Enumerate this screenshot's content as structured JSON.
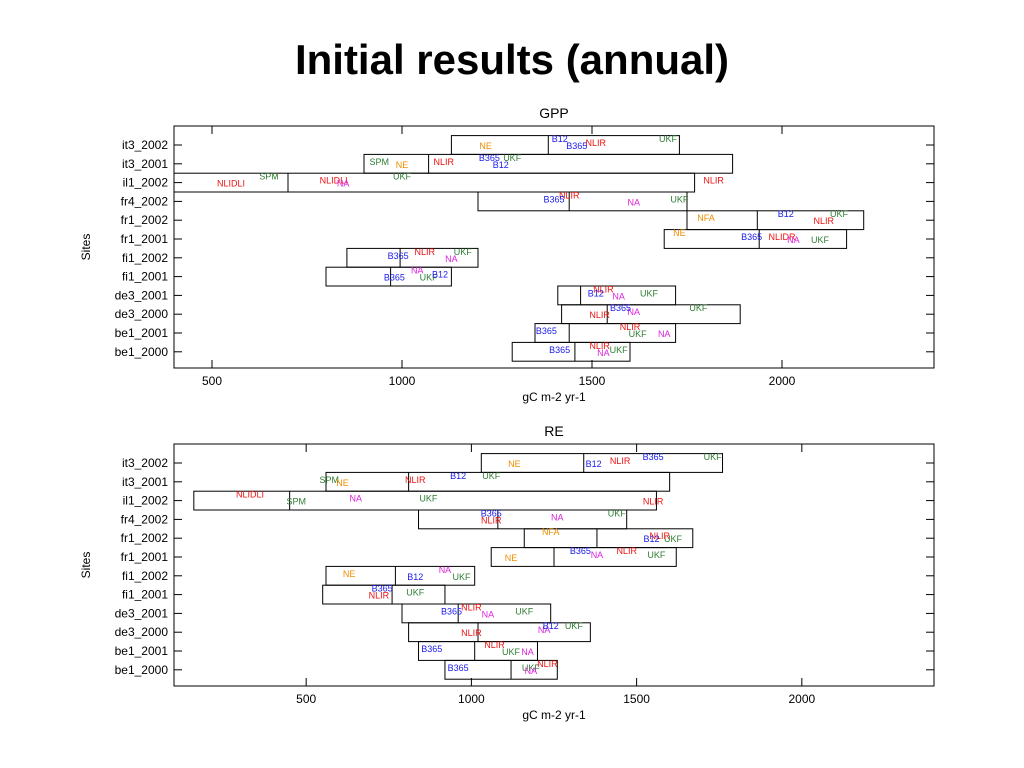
{
  "slide": {
    "title": "Initial results (annual)"
  },
  "chart_data": [
    {
      "type": "box",
      "title": "GPP",
      "xlabel": "gC m-2 yr-1",
      "ylabel": "Sites",
      "xlim": [
        400,
        2400
      ],
      "xticks": [
        500,
        1000,
        1500,
        2000
      ],
      "grid": false,
      "categories": [
        "it3_2002",
        "it3_2001",
        "il1_2002",
        "fr4_2002",
        "fr1_2002",
        "fr1_2001",
        "fi1_2002",
        "fi1_2001",
        "de3_2001",
        "de3_2000",
        "be1_2001",
        "be1_2000"
      ],
      "boxes": [
        {
          "site": "it3_2002",
          "low": 1130,
          "high": 1730,
          "median": 1385
        },
        {
          "site": "it3_2001",
          "low": 900,
          "high": 1870,
          "median": 1070
        },
        {
          "site": "il1_2002",
          "low": 400,
          "high": 1770,
          "median": 700
        },
        {
          "site": "fr4_2002",
          "low": 1200,
          "high": 1750,
          "median": 1440
        },
        {
          "site": "fr1_2002",
          "low": 1750,
          "high": 2215,
          "median": 1935
        },
        {
          "site": "fr1_2001",
          "low": 1690,
          "high": 2170,
          "median": 1940
        },
        {
          "site": "fi1_2002",
          "low": 855,
          "high": 1200,
          "median": 995
        },
        {
          "site": "fi1_2001",
          "low": 800,
          "high": 1130,
          "median": 970
        },
        {
          "site": "de3_2001",
          "low": 1410,
          "high": 1720,
          "median": 1470
        },
        {
          "site": "de3_2000",
          "low": 1420,
          "high": 1890,
          "median": 1540
        },
        {
          "site": "be1_2001",
          "low": 1350,
          "high": 1720,
          "median": 1440
        },
        {
          "site": "be1_2000",
          "low": 1290,
          "high": 1600,
          "median": 1455
        }
      ],
      "model_labels": [
        {
          "site": "it3_2002",
          "label": "UKF",
          "x": 1700,
          "color": "#2e7d32"
        },
        {
          "site": "it3_2002",
          "label": "NE",
          "x": 1220,
          "color": "#ef8c00"
        },
        {
          "site": "it3_2002",
          "label": "NLIR",
          "x": 1510,
          "color": "#ee1111"
        },
        {
          "site": "it3_2002",
          "label": "B12",
          "x": 1415,
          "color": "#1a1aee"
        },
        {
          "site": "it3_2002",
          "label": "B365",
          "x": 1460,
          "color": "#1a1aee"
        },
        {
          "site": "it3_2001",
          "label": "SPM",
          "x": 940,
          "color": "#2e7d32"
        },
        {
          "site": "it3_2001",
          "label": "UKF",
          "x": 1290,
          "color": "#2e7d32"
        },
        {
          "site": "it3_2001",
          "label": "NE",
          "x": 1000,
          "color": "#ef8c00"
        },
        {
          "site": "it3_2001",
          "label": "NLIR",
          "x": 1110,
          "color": "#ee1111"
        },
        {
          "site": "it3_2001",
          "label": "B365",
          "x": 1230,
          "color": "#1a1aee"
        },
        {
          "site": "it3_2001",
          "label": "B12",
          "x": 1260,
          "color": "#1a1aee"
        },
        {
          "site": "il1_2002",
          "label": "NLIR",
          "x": 1820,
          "color": "#ee1111"
        },
        {
          "site": "il1_2002",
          "label": "UKF",
          "x": 1000,
          "color": "#2e7d32"
        },
        {
          "site": "il1_2002",
          "label": "NLIDLI",
          "x": 550,
          "color": "#ee1111"
        },
        {
          "site": "il1_2002",
          "label": "NLIDLI",
          "x": 820,
          "color": "#ee1111"
        },
        {
          "site": "il1_2002",
          "label": "SPM",
          "x": 650,
          "color": "#2e7d32"
        },
        {
          "site": "il1_2002",
          "label": "NA",
          "x": 845,
          "color": "#dd22dd"
        },
        {
          "site": "fr4_2002",
          "label": "UKF",
          "x": 1730,
          "color": "#2e7d32"
        },
        {
          "site": "fr4_2002",
          "label": "NLIR",
          "x": 1440,
          "color": "#ee1111"
        },
        {
          "site": "fr4_2002",
          "label": "NA",
          "x": 1610,
          "color": "#dd22dd"
        },
        {
          "site": "fr4_2002",
          "label": "B365",
          "x": 1400,
          "color": "#1a1aee"
        },
        {
          "site": "fr1_2002",
          "label": "UKF",
          "x": 2150,
          "color": "#2e7d32"
        },
        {
          "site": "fr1_2002",
          "label": "NLIR",
          "x": 2110,
          "color": "#ee1111"
        },
        {
          "site": "fr1_2002",
          "label": "NFA",
          "x": 1800,
          "color": "#ef8c00"
        },
        {
          "site": "fr1_2002",
          "label": "B12",
          "x": 2010,
          "color": "#1a1aee"
        },
        {
          "site": "fr1_2001",
          "label": "UKF",
          "x": 2100,
          "color": "#2e7d32"
        },
        {
          "site": "fr1_2001",
          "label": "NLIDR",
          "x": 2000,
          "color": "#ee1111"
        },
        {
          "site": "fr1_2001",
          "label": "NE",
          "x": 1730,
          "color": "#ef8c00"
        },
        {
          "site": "fr1_2001",
          "label": "NA",
          "x": 2030,
          "color": "#dd22dd"
        },
        {
          "site": "fr1_2001",
          "label": "B365",
          "x": 1920,
          "color": "#1a1aee"
        },
        {
          "site": "fi1_2002",
          "label": "UKF",
          "x": 1160,
          "color": "#2e7d32"
        },
        {
          "site": "fi1_2002",
          "label": "NA",
          "x": 1130,
          "color": "#dd22dd"
        },
        {
          "site": "fi1_2002",
          "label": "B365",
          "x": 990,
          "color": "#1a1aee"
        },
        {
          "site": "fi1_2002",
          "label": "NLIR",
          "x": 1060,
          "color": "#ee1111"
        },
        {
          "site": "fi1_2001",
          "label": "UKF",
          "x": 1070,
          "color": "#2e7d32"
        },
        {
          "site": "fi1_2001",
          "label": "B12",
          "x": 1100,
          "color": "#1a1aee"
        },
        {
          "site": "fi1_2001",
          "label": "NA",
          "x": 1040,
          "color": "#dd22dd"
        },
        {
          "site": "fi1_2001",
          "label": "B365",
          "x": 980,
          "color": "#1a1aee"
        },
        {
          "site": "de3_2001",
          "label": "UKF",
          "x": 1650,
          "color": "#2e7d32"
        },
        {
          "site": "de3_2001",
          "label": "NLIR",
          "x": 1530,
          "color": "#ee1111"
        },
        {
          "site": "de3_2001",
          "label": "NA",
          "x": 1570,
          "color": "#dd22dd"
        },
        {
          "site": "de3_2001",
          "label": "B12",
          "x": 1510,
          "color": "#1a1aee"
        },
        {
          "site": "de3_2000",
          "label": "UKF",
          "x": 1780,
          "color": "#2e7d32"
        },
        {
          "site": "de3_2000",
          "label": "NLIR",
          "x": 1520,
          "color": "#ee1111"
        },
        {
          "site": "de3_2000",
          "label": "NA",
          "x": 1610,
          "color": "#dd22dd"
        },
        {
          "site": "de3_2000",
          "label": "B365",
          "x": 1575,
          "color": "#1a1aee"
        },
        {
          "site": "be1_2001",
          "label": "NA",
          "x": 1690,
          "color": "#dd22dd"
        },
        {
          "site": "be1_2001",
          "label": "B365",
          "x": 1380,
          "color": "#1a1aee"
        },
        {
          "site": "be1_2001",
          "label": "NLIR",
          "x": 1600,
          "color": "#ee1111"
        },
        {
          "site": "be1_2001",
          "label": "UKF",
          "x": 1620,
          "color": "#2e7d32"
        },
        {
          "site": "be1_2000",
          "label": "UKF",
          "x": 1570,
          "color": "#2e7d32"
        },
        {
          "site": "be1_2000",
          "label": "NLIR",
          "x": 1520,
          "color": "#ee1111"
        },
        {
          "site": "be1_2000",
          "label": "NA",
          "x": 1530,
          "color": "#dd22dd"
        },
        {
          "site": "be1_2000",
          "label": "B365",
          "x": 1415,
          "color": "#1a1aee"
        }
      ]
    },
    {
      "type": "box",
      "title": "RE",
      "xlabel": "gC m-2 yr-1",
      "ylabel": "Sites",
      "xlim": [
        100,
        2400
      ],
      "xticks": [
        500,
        1000,
        1500,
        2000
      ],
      "grid": false,
      "categories": [
        "it3_2002",
        "it3_2001",
        "il1_2002",
        "fr4_2002",
        "fr1_2002",
        "fr1_2001",
        "fi1_2002",
        "fi1_2001",
        "de3_2001",
        "de3_2000",
        "be1_2001",
        "be1_2000"
      ],
      "boxes": [
        {
          "site": "it3_2002",
          "low": 1030,
          "high": 1760,
          "median": 1340
        },
        {
          "site": "it3_2001",
          "low": 560,
          "high": 1600,
          "median": 810
        },
        {
          "site": "il1_2002",
          "low": 160,
          "high": 1560,
          "median": 450
        },
        {
          "site": "fr4_2002",
          "low": 840,
          "high": 1470,
          "median": 1080
        },
        {
          "site": "fr1_2002",
          "low": 1160,
          "high": 1670,
          "median": 1380
        },
        {
          "site": "fr1_2001",
          "low": 1060,
          "high": 1620,
          "median": 1250
        },
        {
          "site": "fi1_2002",
          "low": 560,
          "high": 1010,
          "median": 770
        },
        {
          "site": "fi1_2001",
          "low": 550,
          "high": 920,
          "median": 760
        },
        {
          "site": "de3_2001",
          "low": 790,
          "high": 1240,
          "median": 960
        },
        {
          "site": "de3_2000",
          "low": 810,
          "high": 1360,
          "median": 1020
        },
        {
          "site": "be1_2001",
          "low": 840,
          "high": 1200,
          "median": 1010
        },
        {
          "site": "be1_2000",
          "low": 920,
          "high": 1260,
          "median": 1120
        }
      ],
      "model_labels": [
        {
          "site": "it3_2002",
          "label": "UKF",
          "x": 1730,
          "color": "#2e7d32"
        },
        {
          "site": "it3_2002",
          "label": "NE",
          "x": 1130,
          "color": "#ef8c00"
        },
        {
          "site": "it3_2002",
          "label": "NLIR",
          "x": 1450,
          "color": "#ee1111"
        },
        {
          "site": "it3_2002",
          "label": "B365",
          "x": 1550,
          "color": "#1a1aee"
        },
        {
          "site": "it3_2002",
          "label": "B12",
          "x": 1370,
          "color": "#1a1aee"
        },
        {
          "site": "it3_2001",
          "label": "SPM",
          "x": 570,
          "color": "#2e7d32"
        },
        {
          "site": "it3_2001",
          "label": "UKF",
          "x": 1060,
          "color": "#2e7d32"
        },
        {
          "site": "it3_2001",
          "label": "NE",
          "x": 610,
          "color": "#ef8c00"
        },
        {
          "site": "it3_2001",
          "label": "NLIR",
          "x": 830,
          "color": "#ee1111"
        },
        {
          "site": "it3_2001",
          "label": "B12",
          "x": 960,
          "color": "#1a1aee"
        },
        {
          "site": "il1_2002",
          "label": "NLIR",
          "x": 1550,
          "color": "#ee1111"
        },
        {
          "site": "il1_2002",
          "label": "UKF",
          "x": 870,
          "color": "#2e7d32"
        },
        {
          "site": "il1_2002",
          "label": "NLIDLI",
          "x": 330,
          "color": "#ee1111"
        },
        {
          "site": "il1_2002",
          "label": "SPM",
          "x": 470,
          "color": "#2e7d32"
        },
        {
          "site": "il1_2002",
          "label": "NA",
          "x": 650,
          "color": "#dd22dd"
        },
        {
          "site": "fr4_2002",
          "label": "UKF",
          "x": 1440,
          "color": "#2e7d32"
        },
        {
          "site": "fr4_2002",
          "label": "NLIR",
          "x": 1060,
          "color": "#ee1111"
        },
        {
          "site": "fr4_2002",
          "label": "NA",
          "x": 1260,
          "color": "#dd22dd"
        },
        {
          "site": "fr4_2002",
          "label": "B365",
          "x": 1060,
          "color": "#1a1aee"
        },
        {
          "site": "fr1_2002",
          "label": "UKF",
          "x": 1610,
          "color": "#2e7d32"
        },
        {
          "site": "fr1_2002",
          "label": "NLIR",
          "x": 1570,
          "color": "#ee1111"
        },
        {
          "site": "fr1_2002",
          "label": "NFA",
          "x": 1240,
          "color": "#ef8c00"
        },
        {
          "site": "fr1_2002",
          "label": "B12",
          "x": 1545,
          "color": "#1a1aee"
        },
        {
          "site": "fr1_2001",
          "label": "UKF",
          "x": 1560,
          "color": "#2e7d32"
        },
        {
          "site": "fr1_2001",
          "label": "NLIR",
          "x": 1470,
          "color": "#ee1111"
        },
        {
          "site": "fr1_2001",
          "label": "NE",
          "x": 1120,
          "color": "#ef8c00"
        },
        {
          "site": "fr1_2001",
          "label": "NA",
          "x": 1380,
          "color": "#dd22dd"
        },
        {
          "site": "fr1_2001",
          "label": "B365",
          "x": 1330,
          "color": "#1a1aee"
        },
        {
          "site": "fi1_2002",
          "label": "UKF",
          "x": 970,
          "color": "#2e7d32"
        },
        {
          "site": "fi1_2002",
          "label": "NE",
          "x": 630,
          "color": "#ef8c00"
        },
        {
          "site": "fi1_2002",
          "label": "NA",
          "x": 920,
          "color": "#dd22dd"
        },
        {
          "site": "fi1_2002",
          "label": "B12",
          "x": 830,
          "color": "#1a1aee"
        },
        {
          "site": "fi1_2001",
          "label": "UKF",
          "x": 830,
          "color": "#2e7d32"
        },
        {
          "site": "fi1_2001",
          "label": "B365",
          "x": 730,
          "color": "#1a1aee"
        },
        {
          "site": "fi1_2001",
          "label": "NLIR",
          "x": 720,
          "color": "#ee1111"
        },
        {
          "site": "de3_2001",
          "label": "UKF",
          "x": 1160,
          "color": "#2e7d32"
        },
        {
          "site": "de3_2001",
          "label": "NLIR",
          "x": 1000,
          "color": "#ee1111"
        },
        {
          "site": "de3_2001",
          "label": "NA",
          "x": 1050,
          "color": "#dd22dd"
        },
        {
          "site": "de3_2001",
          "label": "B365",
          "x": 940,
          "color": "#1a1aee"
        },
        {
          "site": "de3_2000",
          "label": "UKF",
          "x": 1310,
          "color": "#2e7d32"
        },
        {
          "site": "de3_2000",
          "label": "NLIR",
          "x": 1000,
          "color": "#ee1111"
        },
        {
          "site": "de3_2000",
          "label": "NA",
          "x": 1220,
          "color": "#dd22dd"
        },
        {
          "site": "de3_2000",
          "label": "B12",
          "x": 1240,
          "color": "#1a1aee"
        },
        {
          "site": "be1_2001",
          "label": "NA",
          "x": 1170,
          "color": "#dd22dd"
        },
        {
          "site": "be1_2001",
          "label": "B365",
          "x": 880,
          "color": "#1a1aee"
        },
        {
          "site": "be1_2001",
          "label": "NLIR",
          "x": 1070,
          "color": "#ee1111"
        },
        {
          "site": "be1_2001",
          "label": "UKF",
          "x": 1120,
          "color": "#2e7d32"
        },
        {
          "site": "be1_2000",
          "label": "UKF",
          "x": 1180,
          "color": "#2e7d32"
        },
        {
          "site": "be1_2000",
          "label": "NLIR",
          "x": 1230,
          "color": "#ee1111"
        },
        {
          "site": "be1_2000",
          "label": "NA",
          "x": 1180,
          "color": "#dd22dd"
        },
        {
          "site": "be1_2000",
          "label": "B365",
          "x": 960,
          "color": "#1a1aee"
        }
      ]
    }
  ]
}
